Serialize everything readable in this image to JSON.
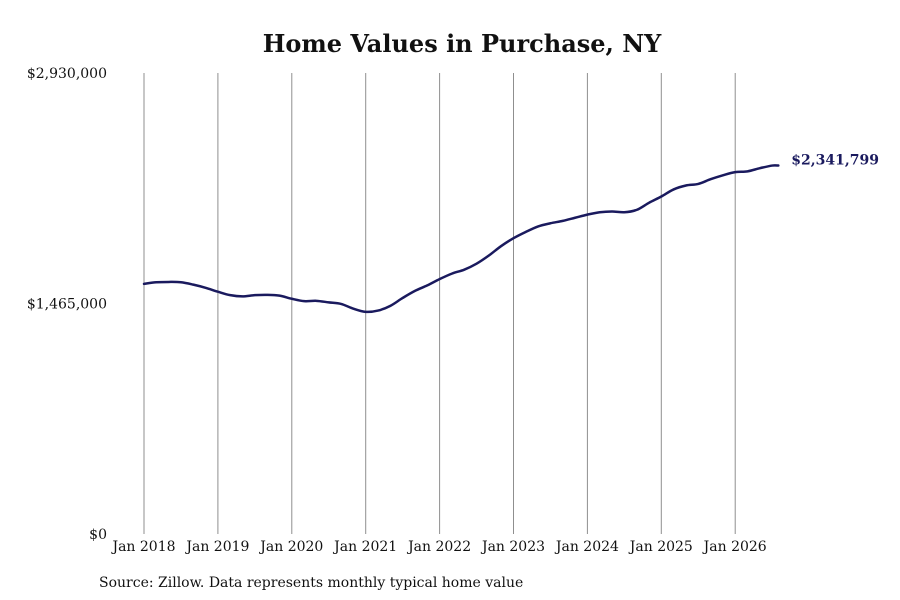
{
  "chart_data": {
    "type": "line",
    "title": "Home Values in Purchase, NY",
    "xlabel": "",
    "ylabel": "",
    "source": "Source: Zillow. Data represents monthly typical home value",
    "x_ticks": [
      "Jan 2018",
      "Jan 2019",
      "Jan 2020",
      "Jan 2021",
      "Jan 2022",
      "Jan 2023",
      "Jan 2024",
      "Jan 2025",
      "Jan 2026"
    ],
    "y_ticks": [
      "$2,930,000",
      "$1,465,000",
      "$0"
    ],
    "ylim": [
      0,
      2930000
    ],
    "xlim": [
      "2018-01",
      "2026-12"
    ],
    "grid": "vertical",
    "line_color": "#1a1a5e",
    "end_label": "$2,341,799",
    "series": [
      {
        "x": [
          "2018-01",
          "2018-03",
          "2018-05",
          "2018-07",
          "2018-09",
          "2018-11",
          "2019-01",
          "2019-03",
          "2019-05",
          "2019-07",
          "2019-09",
          "2019-11",
          "2020-01",
          "2020-03",
          "2020-05",
          "2020-07",
          "2020-09",
          "2020-11",
          "2021-01",
          "2021-03",
          "2021-05",
          "2021-07",
          "2021-09",
          "2021-11",
          "2022-01",
          "2022-03",
          "2022-05",
          "2022-07",
          "2022-09",
          "2022-11",
          "2023-01",
          "2023-03",
          "2023-05",
          "2023-07",
          "2023-09",
          "2023-11",
          "2024-01",
          "2024-03",
          "2024-05",
          "2024-07",
          "2024-09",
          "2024-11",
          "2025-01",
          "2025-03",
          "2025-05",
          "2025-07",
          "2025-09",
          "2025-11",
          "2026-01",
          "2026-03",
          "2026-05",
          "2026-07",
          "2026-08"
        ],
        "values": [
          1590000,
          1600000,
          1602000,
          1600000,
          1585000,
          1565000,
          1540000,
          1518000,
          1510000,
          1518000,
          1520000,
          1515000,
          1495000,
          1480000,
          1482000,
          1472000,
          1462000,
          1432000,
          1412000,
          1420000,
          1450000,
          1500000,
          1545000,
          1580000,
          1620000,
          1655000,
          1680000,
          1718000,
          1770000,
          1830000,
          1880000,
          1920000,
          1955000,
          1975000,
          1990000,
          2010000,
          2030000,
          2045000,
          2050000,
          2045000,
          2060000,
          2105000,
          2145000,
          2190000,
          2215000,
          2225000,
          2255000,
          2280000,
          2300000,
          2305000,
          2325000,
          2341799,
          2341799
        ]
      }
    ]
  }
}
